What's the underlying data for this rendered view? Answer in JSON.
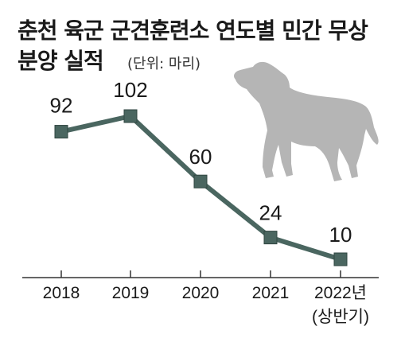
{
  "chart_data": {
    "type": "line",
    "title": "춘천 육군 군견훈련소 연도별 민간 무상",
    "title_line2": "분양 실적",
    "unit": "(단위: 마리)",
    "categories": [
      "2018",
      "2019",
      "2020",
      "2021",
      "2022년"
    ],
    "category_sublabels": [
      "",
      "",
      "",
      "",
      "(상반기)"
    ],
    "series": [
      {
        "values": [
          92,
          102,
          60,
          24,
          10
        ]
      }
    ],
    "data_labels": [
      "92",
      "102",
      "60",
      "24",
      "10"
    ],
    "ylim": [
      0,
      110
    ],
    "grid": false,
    "legend": "none",
    "colors": {
      "line": "#4a6660",
      "marker": "#4a6660",
      "marker_stroke": "#2f4540",
      "axis": "#333333",
      "text": "#1a1a1a",
      "dog_silhouette": "#b5b5b5"
    },
    "decoration": {
      "icon": "dog-silhouette-icon"
    }
  }
}
